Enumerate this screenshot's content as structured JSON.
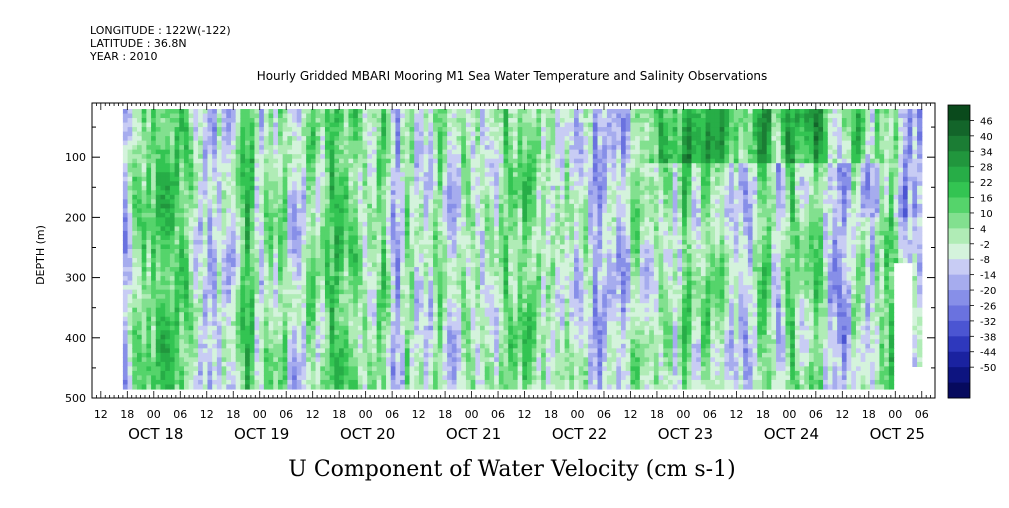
{
  "header": {
    "longitude": "LONGITUDE : 122W(-122)",
    "latitude": "LATITUDE : 36.8N",
    "year": "YEAR : 2010",
    "title": "Hourly Gridded MBARI Mooring M1 Sea Water Temperature and Salinity Observations"
  },
  "chart_data": {
    "type": "heatmap",
    "title": "Hourly Gridded MBARI Mooring M1 Sea Water Temperature and Salinity Observations",
    "xlabel": "U Component of Water Velocity (cm s-1)",
    "ylabel": "DEPTH (m)",
    "ylim": [
      500,
      10
    ],
    "y_ticks": [
      100,
      200,
      300,
      400,
      500
    ],
    "x_range_hours": [
      -14,
      177
    ],
    "data_extent_hours": [
      -7,
      174
    ],
    "data_depth_range": [
      20,
      485
    ],
    "x_hour_ticks": [
      "12",
      "18",
      "00",
      "06",
      "12",
      "18",
      "00",
      "06",
      "12",
      "18",
      "00",
      "06",
      "12",
      "18",
      "00",
      "06",
      "12",
      "18",
      "00",
      "06",
      "12",
      "18",
      "00",
      "06",
      "12",
      "18",
      "00",
      "06",
      "12",
      "18",
      "00",
      "06"
    ],
    "x_day_labels": [
      "OCT 18",
      "OCT 19",
      "OCT 20",
      "OCT 21",
      "OCT 22",
      "OCT 23",
      "OCT 24",
      "OCT 25"
    ],
    "colorbar": {
      "levels": [
        46,
        40,
        34,
        28,
        22,
        16,
        10,
        4,
        -2,
        -8,
        -14,
        -20,
        -26,
        -32,
        -38,
        -44,
        -50
      ],
      "colors_high_to_low": [
        "#0a4a1c",
        "#13652a",
        "#1b7d34",
        "#21963d",
        "#27ad47",
        "#33c452",
        "#55d46b",
        "#82e08f",
        "#b0ecb6",
        "#d4f3dc",
        "#c8ccf4",
        "#a6acee",
        "#878fe8",
        "#6a72df",
        "#4b55d2",
        "#2e38bd",
        "#1a22a0",
        "#0d1480",
        "#060a5e"
      ]
    },
    "field": {
      "description_free": true,
      "mean_u_cm_s": 0,
      "value_range": [
        -38,
        40
      ]
    }
  }
}
